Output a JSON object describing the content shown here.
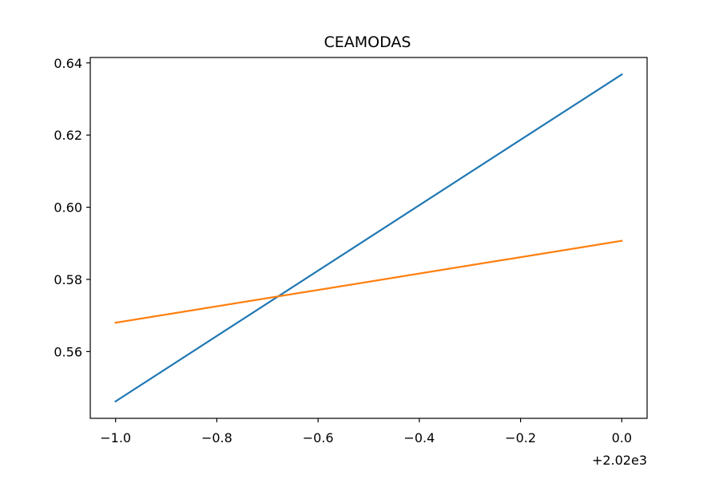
{
  "chart_data": {
    "type": "line",
    "title": "CEAMODAS",
    "xlabel": "",
    "ylabel": "",
    "x_offset_label": "+2.02e3",
    "x": [
      -1.0,
      0.0
    ],
    "xlim": [
      -1.05,
      0.05
    ],
    "ylim": [
      0.5415,
      0.6415
    ],
    "x_ticks": [
      -1.0,
      -0.8,
      -0.6,
      -0.4,
      -0.2,
      0.0
    ],
    "x_tick_labels": [
      "−1.0",
      "−0.8",
      "−0.6",
      "−0.4",
      "−0.2",
      "0.0"
    ],
    "y_ticks": [
      0.56,
      0.58,
      0.6,
      0.62,
      0.64
    ],
    "y_tick_labels": [
      "0.56",
      "0.58",
      "0.60",
      "0.62",
      "0.64"
    ],
    "grid": false,
    "series": [
      {
        "values": [
          0.5462,
          0.6368
        ],
        "color": "#1f77b4"
      },
      {
        "values": [
          0.568,
          0.5907
        ],
        "color": "#ff7f0e"
      }
    ]
  }
}
